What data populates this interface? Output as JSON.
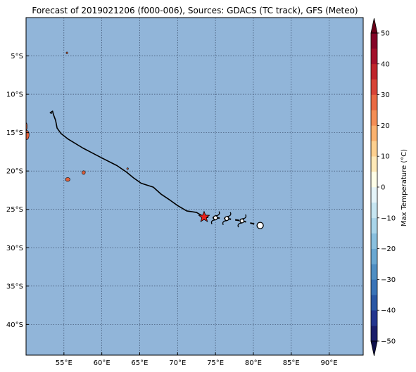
{
  "title": "Forecast of 2019021206 (f000-006), Sources: GDACS (TC track), GFS (Meteo)",
  "colors": {
    "ocean": "#91b5d9",
    "land": "#e0623d",
    "grid": "#2b3a55",
    "track": "#000000",
    "marker": "#e8201c"
  },
  "map": {
    "lon_range": [
      50,
      94.5
    ],
    "lat_range": [
      -44,
      0
    ],
    "lon_ticks": [
      {
        "value": 55,
        "label": "55°E"
      },
      {
        "value": 60,
        "label": "60°E"
      },
      {
        "value": 65,
        "label": "65°E"
      },
      {
        "value": 70,
        "label": "70°E"
      },
      {
        "value": 75,
        "label": "75°E"
      },
      {
        "value": 80,
        "label": "80°E"
      },
      {
        "value": 85,
        "label": "85°E"
      },
      {
        "value": 90,
        "label": "90°E"
      }
    ],
    "lat_ticks": [
      {
        "value": -5,
        "label": "5°S"
      },
      {
        "value": -10,
        "label": "10°S"
      },
      {
        "value": -15,
        "label": "15°S"
      },
      {
        "value": -20,
        "label": "20°S"
      },
      {
        "value": -25,
        "label": "25°S"
      },
      {
        "value": -30,
        "label": "30°S"
      },
      {
        "value": -35,
        "label": "35°S"
      },
      {
        "value": -40,
        "label": "40°S"
      }
    ],
    "past_track": [
      [
        53.4,
        -12.5
      ],
      [
        53.2,
        -12.4
      ],
      [
        53.5,
        -12.2
      ],
      [
        53.6,
        -12.6
      ],
      [
        53.9,
        -13.4
      ],
      [
        54.1,
        -14.4
      ],
      [
        54.6,
        -15.1
      ],
      [
        55.5,
        -15.8
      ],
      [
        57.5,
        -17.0
      ],
      [
        60.0,
        -18.3
      ],
      [
        62.0,
        -19.3
      ],
      [
        63.2,
        -20.1
      ],
      [
        64.2,
        -20.9
      ],
      [
        65.2,
        -21.6
      ],
      [
        66.8,
        -22.1
      ],
      [
        67.8,
        -23.0
      ],
      [
        69.0,
        -23.8
      ],
      [
        70.0,
        -24.5
      ],
      [
        71.2,
        -25.2
      ],
      [
        72.5,
        -25.4
      ],
      [
        73.5,
        -26.0
      ]
    ],
    "current_position": [
      73.5,
      -26.0
    ],
    "forecast_points": [
      {
        "lon": 75.0,
        "lat": -26.1,
        "type": "cyclone"
      },
      {
        "lon": 76.5,
        "lat": -26.2,
        "type": "cyclone"
      },
      {
        "lon": 78.5,
        "lat": -26.5,
        "type": "cyclone"
      },
      {
        "lon": 80.9,
        "lat": -27.1,
        "type": "low"
      }
    ],
    "islands": [
      {
        "name": "",
        "lon": 55.5,
        "lat": -21.1,
        "rx": 0.3,
        "ry": 0.25
      },
      {
        "name": "",
        "lon": 57.6,
        "lat": -20.2,
        "rx": 0.22,
        "ry": 0.25
      },
      {
        "name": "",
        "lon": 50.1,
        "lat": -15.3,
        "rx": 0.3,
        "ry": 0.6
      },
      {
        "name": "",
        "lon": 50.0,
        "lat": -14.2,
        "rx": 0.15,
        "ry": 0.5
      },
      {
        "name": "",
        "lon": 55.4,
        "lat": -4.6,
        "rx": 0.1,
        "ry": 0.12
      },
      {
        "name": "",
        "lon": 63.4,
        "lat": -19.7,
        "rx": 0.1,
        "ry": 0.06
      }
    ]
  },
  "colorbar": {
    "label": "Max Temperature (°C)",
    "vmin": -50,
    "vmax": 50,
    "levels": [
      -50,
      -45,
      -40,
      -35,
      -30,
      -25,
      -20,
      -15,
      -10,
      -5,
      0,
      5,
      10,
      15,
      20,
      25,
      30,
      35,
      40,
      45,
      50
    ],
    "colors": [
      "#1a1d6b",
      "#23358f",
      "#2a57a5",
      "#3a74b8",
      "#4f8fc4",
      "#6aa8d2",
      "#89c0df",
      "#a9d5ea",
      "#c7e6f2",
      "#e5f4f9",
      "#fefee8",
      "#fee9b8",
      "#fdd08f",
      "#fbb26f",
      "#f48e55",
      "#ea6a43",
      "#d84436",
      "#c0252b",
      "#a3102a",
      "#850426"
    ],
    "under_color": "#0d0f4a",
    "over_color": "#6a0018",
    "tick_values": [
      -50,
      -40,
      -30,
      -20,
      -10,
      0,
      10,
      20,
      30,
      40,
      50
    ],
    "tick_labels": [
      "−50",
      "−40",
      "−30",
      "−20",
      "−10",
      "0",
      "10",
      "20",
      "30",
      "40",
      "50"
    ]
  }
}
